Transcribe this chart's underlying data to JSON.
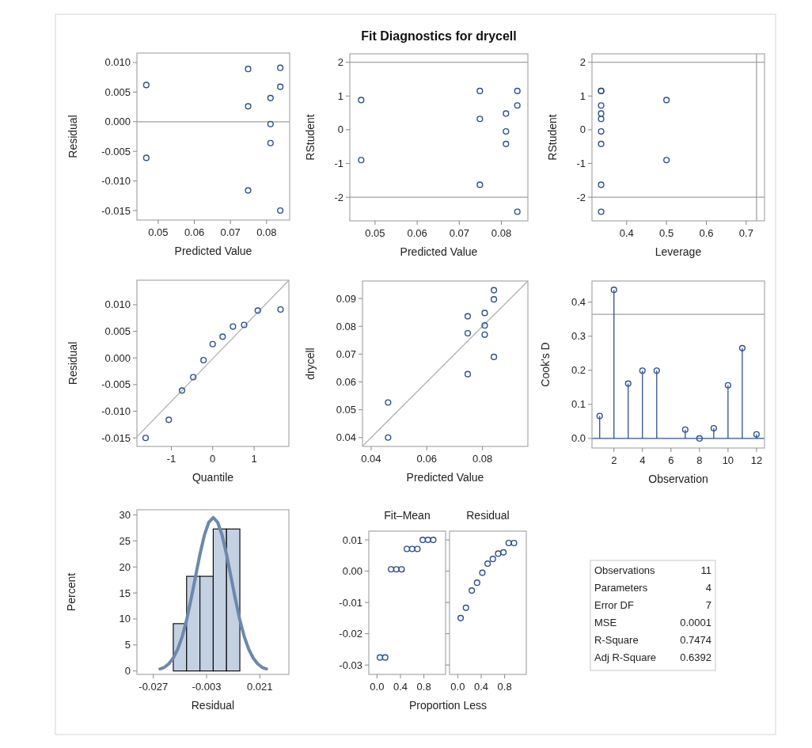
{
  "chart_data": [
    {
      "type": "scatter",
      "xlabel": "Predicted Value",
      "ylabel": "Residual",
      "x": [
        0.0467,
        0.0467,
        0.0749,
        0.0749,
        0.0749,
        0.0811,
        0.0811,
        0.0811,
        0.0838,
        0.0838,
        0.0838
      ],
      "values": [
        0.0062,
        -0.0061,
        0.0089,
        0.0026,
        -0.0116,
        0.004,
        -0.0004,
        -0.0036,
        0.0091,
        0.0059,
        -0.015
      ],
      "color": "#2e4f8f",
      "marker": "circle",
      "xlim": [
        0.0441,
        0.0864
      ],
      "xticks": [
        0.05,
        0.06,
        0.07,
        0.08
      ],
      "ylim": [
        -0.0166,
        0.0116
      ],
      "yticks": [
        {
          "value": -0.015,
          "label": "-0.015"
        },
        {
          "value": -0.01,
          "label": "-0.010"
        },
        {
          "value": -0.005,
          "label": "-0.005"
        },
        {
          "value": 0,
          "label": "0.000"
        },
        {
          "value": 0.005,
          "label": "0.005"
        },
        {
          "value": 0.01,
          "label": "0.010"
        }
      ],
      "ref_lines": [
        {
          "axis": "y",
          "value": 0,
          "color": "#a0a0a0"
        }
      ]
    },
    {
      "type": "scatter",
      "title": "Fit Diagnostics for drycell",
      "xlabel": "Predicted Value",
      "ylabel": "RStudent",
      "x": [
        0.0467,
        0.0467,
        0.0749,
        0.0749,
        0.0749,
        0.0811,
        0.0811,
        0.0811,
        0.0838,
        0.0838,
        0.0838
      ],
      "values": [
        0.88,
        -0.9,
        1.15,
        0.32,
        -1.63,
        0.48,
        -0.05,
        -0.42,
        1.15,
        0.72,
        -2.43
      ],
      "color": "#2e4f8f",
      "marker": "circle",
      "xlim": [
        0.044,
        0.0863
      ],
      "xticks": [
        0.05,
        0.06,
        0.07,
        0.08
      ],
      "ylim": [
        -2.7,
        2.25
      ],
      "yticks": [
        -2,
        -1,
        0,
        1,
        2
      ],
      "ref_lines": [
        {
          "axis": "y",
          "value": 2,
          "color": "#a0a0a0"
        },
        {
          "axis": "y",
          "value": -2,
          "color": "#a0a0a0"
        }
      ]
    },
    {
      "type": "scatter",
      "xlabel": "Leverage",
      "ylabel": "RStudent",
      "x": [
        0.5,
        0.5,
        0.336,
        0.336,
        0.336,
        0.336,
        0.336,
        0.336,
        0.336,
        0.336,
        0.336
      ],
      "values": [
        0.88,
        -0.9,
        1.15,
        0.32,
        -1.63,
        0.48,
        -0.05,
        -0.42,
        1.15,
        0.72,
        -2.43
      ],
      "color": "#2e4f8f",
      "marker": "circle",
      "xlim": [
        0.313,
        0.746
      ],
      "xticks": [
        0.4,
        0.5,
        0.6,
        0.7
      ],
      "ylim": [
        -2.7,
        2.25
      ],
      "yticks": [
        -2,
        -1,
        0,
        1,
        2
      ],
      "ref_lines": [
        {
          "axis": "y",
          "value": 2,
          "color": "#a0a0a0"
        },
        {
          "axis": "y",
          "value": -2,
          "color": "#a0a0a0"
        },
        {
          "axis": "x",
          "value": 0.726,
          "color": "#a0a0a0"
        }
      ]
    },
    {
      "type": "scatter",
      "xlabel": "Quantile",
      "ylabel": "Residual",
      "series": [
        {
          "type": "line",
          "color": "#b0b0b0",
          "x": [
            -1.83,
            1.84
          ],
          "values": [
            -0.0148,
            0.0146
          ]
        },
        {
          "type": "scatter",
          "marker": "circle",
          "color": "#2e4f8f",
          "x": [
            -1.62,
            -1.06,
            -0.74,
            -0.47,
            -0.22,
            0,
            0.24,
            0.49,
            0.76,
            1.09,
            1.64
          ],
          "values": [
            -0.015,
            -0.0116,
            -0.0061,
            -0.0036,
            -0.0004,
            0.0026,
            0.004,
            0.0059,
            0.0062,
            0.0089,
            0.0091
          ]
        }
      ],
      "xlim": [
        -1.83,
        1.84
      ],
      "xticks": [
        -1,
        0,
        1
      ],
      "ylim": [
        -0.0166,
        0.0146
      ],
      "yticks": [
        {
          "value": -0.015,
          "label": "-0.015"
        },
        {
          "value": -0.01,
          "label": "-0.010"
        },
        {
          "value": -0.005,
          "label": "-0.005"
        },
        {
          "value": 0,
          "label": "0.000"
        },
        {
          "value": 0.005,
          "label": "0.005"
        },
        {
          "value": 0.01,
          "label": "0.010"
        }
      ]
    },
    {
      "type": "scatter",
      "xlabel": "Predicted Value",
      "ylabel": "drycell",
      "series": [
        {
          "type": "line",
          "color": "#b0b0b0",
          "x": [
            0.0369,
            0.0963
          ],
          "values": [
            0.0369,
            0.0963
          ]
        },
        {
          "type": "scatter",
          "marker": "circle",
          "color": "#2e4f8f",
          "x": [
            0.0461,
            0.0461,
            0.0747,
            0.0747,
            0.0747,
            0.0808,
            0.0808,
            0.0808,
            0.0841,
            0.0841,
            0.0841
          ],
          "values": [
            0.0526,
            0.04,
            0.0836,
            0.0775,
            0.0628,
            0.0848,
            0.0803,
            0.077,
            0.093,
            0.0897,
            0.069
          ]
        }
      ],
      "xlim": [
        0.0369,
        0.0963
      ],
      "xticks": [
        0.04,
        0.06,
        0.08
      ],
      "ylim": [
        0.0368,
        0.0963
      ],
      "yticks": [
        0.04,
        0.05,
        0.06,
        0.07,
        0.08,
        0.09
      ]
    },
    {
      "type": "lollipop",
      "xlabel": "Observation",
      "ylabel": "Cook's D",
      "x": [
        1,
        2,
        3,
        4,
        5,
        7,
        8,
        9,
        10,
        11,
        12
      ],
      "values": [
        0.066,
        0.436,
        0.161,
        0.199,
        0.199,
        0.026,
        0,
        0.03,
        0.156,
        0.265,
        0.012
      ],
      "color": "#2e4f8f",
      "marker": "circle",
      "xlim": [
        0.46,
        12.56
      ],
      "xticks": [
        2,
        4,
        6,
        8,
        10,
        12
      ],
      "ylim": [
        -0.028,
        0.462
      ],
      "yticks": [
        {
          "value": 0,
          "label": "0.0"
        },
        0.1,
        0.2,
        0.3,
        0.4
      ],
      "ref_lines": [
        {
          "axis": "y",
          "value": 0.364,
          "color": "#a0a0a0"
        },
        {
          "axis": "y",
          "value": 0,
          "color": "#2e4f8f"
        }
      ]
    },
    {
      "type": "histogram",
      "xlabel": "Residual",
      "ylabel": "Percent",
      "bins": [
        -0.018,
        -0.012,
        -0.006,
        0,
        0.006,
        0.012
      ],
      "values": [
        9.1,
        18.2,
        18.2,
        27.3,
        27.3
      ],
      "color": "#c4d1e3",
      "series": [
        {
          "type": "line",
          "color": "#6e88ac",
          "x": [
            -0.024,
            -0.022,
            -0.02,
            -0.018,
            -0.016,
            -0.014,
            -0.012,
            -0.01,
            -0.008,
            -0.006,
            -0.004,
            -0.002,
            0,
            0.002,
            0.004,
            0.006,
            0.008,
            0.01,
            0.012,
            0.014,
            0.016,
            0.018,
            0.02,
            0.022,
            0.024
          ],
          "values": [
            0.4,
            0.7,
            1.4,
            2.5,
            4.2,
            6.6,
            9.8,
            13.8,
            18.1,
            22.4,
            26.1,
            28.6,
            29.5,
            28.6,
            26.1,
            22.4,
            18.1,
            13.8,
            9.8,
            6.6,
            4.2,
            2.5,
            1.4,
            0.7,
            0.4
          ]
        }
      ],
      "xlim": [
        -0.0344,
        0.0341
      ],
      "xticks": [
        -0.027,
        -0.003,
        0.021
      ],
      "ylim": [
        -0.66,
        31
      ],
      "yticks": [
        0,
        5,
        10,
        15,
        20,
        25,
        30
      ]
    },
    {
      "type": "scatter",
      "title": "Fit–Mean",
      "xlabel": "Proportion Less",
      "x": [
        0.05,
        0.14,
        0.24,
        0.33,
        0.42,
        0.51,
        0.6,
        0.69,
        0.78,
        0.87,
        0.96
      ],
      "values": [
        -0.0276,
        -0.0276,
        0.0006,
        0.0006,
        0.0006,
        0.0071,
        0.0071,
        0.0071,
        0.01,
        0.01,
        0.01
      ],
      "color": "#2e4f8f",
      "marker": "circle",
      "xlim": [
        -0.14,
        1.17
      ],
      "xticks": [
        {
          "value": 0,
          "label": "0.0"
        },
        0.4,
        0.8
      ],
      "ylim": [
        -0.033,
        0.0128
      ],
      "yticks": [
        {
          "value": -0.03,
          "label": "-0.03"
        },
        {
          "value": -0.02,
          "label": "-0.02"
        },
        {
          "value": -0.01,
          "label": "-0.01"
        },
        {
          "value": 0,
          "label": "0.00"
        },
        {
          "value": 0.01,
          "label": "0.01"
        }
      ]
    },
    {
      "type": "scatter",
      "title": "Residual",
      "x": [
        0.05,
        0.14,
        0.24,
        0.33,
        0.42,
        0.51,
        0.6,
        0.69,
        0.78,
        0.87,
        0.96
      ],
      "values": [
        -0.015,
        -0.0117,
        -0.0062,
        -0.0037,
        -0.0005,
        0.0024,
        0.0039,
        0.0056,
        0.006,
        0.009,
        0.009
      ],
      "color": "#2e4f8f",
      "marker": "circle",
      "tick_labels": "x",
      "xlim": [
        -0.14,
        1.17
      ],
      "xticks": [
        {
          "value": 0,
          "label": "0.0"
        },
        0.4,
        0.8
      ],
      "ylim": [
        -0.033,
        0.0128
      ],
      "yticks": [
        -0.03,
        -0.02,
        -0.01,
        0,
        0.01
      ]
    },
    {
      "type": "other",
      "categories": [
        "Observations",
        "Parameters",
        "Error DF",
        "MSE",
        "R-Square",
        "Adj R-Square"
      ],
      "values": [
        11,
        4,
        7,
        0.0001,
        0.7474,
        0.6392
      ],
      "data_labels": true
    }
  ]
}
